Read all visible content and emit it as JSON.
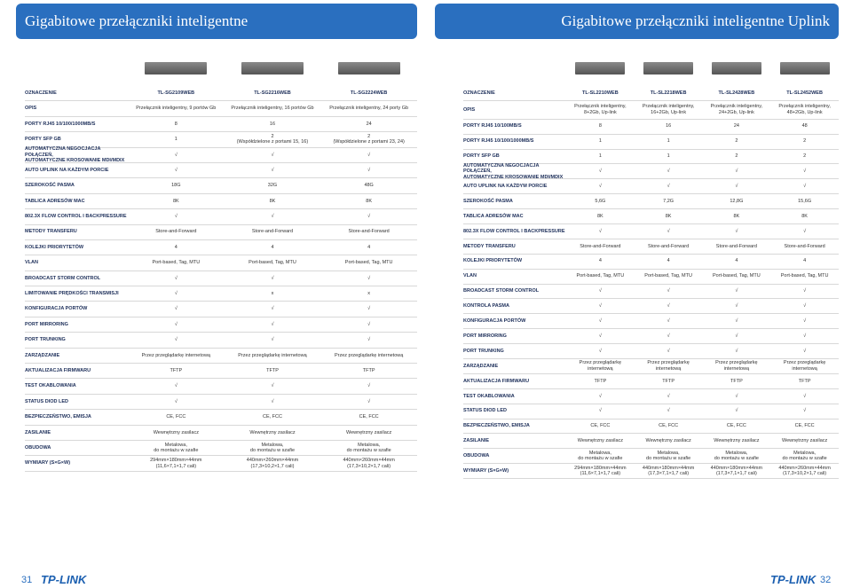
{
  "left": {
    "title": "Gigabitowe przełączniki inteligentne",
    "table": {
      "rows": [
        [
          "OZNACZENIE",
          "TL-SG2109WEB",
          "TL-SG2216WEB",
          "TL-SG2224WEB"
        ],
        [
          "OPIS",
          "Przełącznik inteligentny, 9 portów Gb",
          "Przełącznik inteligentny, 16 portów Gb",
          "Przełącznik inteligentny, 24 porty Gb"
        ],
        [
          "PORTY RJ45 10/100/1000MB/S",
          "8",
          "16",
          "24"
        ],
        [
          "PORTY SFP GB",
          "1",
          "2\n(Współdzielone z portami 15, 16)",
          "2\n(Współdzielone z portami 23, 24)"
        ],
        [
          "AUTOMATYCZNA NEGOCJACJA POŁĄCZEŃ,\nAUTOMATYCZNE KROSOWANIE MDI/MDIX",
          "√",
          "√",
          "√"
        ],
        [
          "AUTO UPLINK NA KAŻDYM PORCIE",
          "√",
          "√",
          "√"
        ],
        [
          "SZEROKOŚĆ PASMA",
          "18G",
          "32G",
          "48G"
        ],
        [
          "TABLICA ADRESÓW MAC",
          "8K",
          "8K",
          "8K"
        ],
        [
          "802.3X FLOW CONTROL I BACKPRESSURE",
          "√",
          "√",
          "√"
        ],
        [
          "METODY TRANSFERU",
          "Store-and-Forward",
          "Store-and-Forward",
          "Store-and-Forward"
        ],
        [
          "KOLEJKI PRIORYTETÓW",
          "4",
          "4",
          "4"
        ],
        [
          "VLAN",
          "Port-based, Tag, MTU",
          "Port-based, Tag, MTU",
          "Port-based, Tag, MTU"
        ],
        [
          "BROADCAST STORM CONTROL",
          "√",
          "√",
          "√"
        ],
        [
          "LIMITOWANIE PRĘDKOŚCI TRANSMISJI",
          "√",
          "x",
          "x"
        ],
        [
          "KONFIGURACJA PORTÓW",
          "√",
          "√",
          "√"
        ],
        [
          "PORT MIRRORING",
          "√",
          "√",
          "√"
        ],
        [
          "PORT TRUNKING",
          "√",
          "√",
          "√"
        ],
        [
          "ZARZĄDZANIE",
          "Przez przeglądarkę internetową",
          "Przez przeglądarkę internetową",
          "Przez przeglądarkę internetową"
        ],
        [
          "AKTUALIZACJA FIRMWARU",
          "TFTP",
          "TFTP",
          "TFTP"
        ],
        [
          "TEST OKABLOWANIA",
          "√",
          "√",
          "√"
        ],
        [
          "STATUS DIOD LED",
          "√",
          "√",
          "√"
        ],
        [
          "BEZPIECZEŃSTWO, EMISJA",
          "CE, FCC",
          "CE, FCC",
          "CE, FCC"
        ],
        [
          "ZASILANIE",
          "Wewnętrzny zasilacz",
          "Wewnętrzny zasilacz",
          "Wewnętrzny zasilacz"
        ],
        [
          "OBUDOWA",
          "Metalowa,\ndo montażu w szafie",
          "Metalowa,\ndo montażu w szafie",
          "Metalowa,\ndo montażu w szafie"
        ],
        [
          "WYMIARY (S×G×W)",
          "294mm×180mm×44mm\n(11,6×7,1×1,7 cali)",
          "440mm×260mm×44mm\n(17,3×10,2×1,7 cali)",
          "440mm×260mm×44mm\n(17,3×10,2×1,7 cali)"
        ]
      ]
    }
  },
  "right": {
    "title": "Gigabitowe przełączniki inteligentne Uplink",
    "table": {
      "rows": [
        [
          "OZNACZENIE",
          "TL-SL2210WEB",
          "TL-SL2218WEB",
          "TL-SL2428WEB",
          "TL-SL2452WEB"
        ],
        [
          "OPIS",
          "Przełącznik inteligentny,\n8+2Gb, Up-link",
          "Przełącznik inteligentny,\n16+2Gb, Up-link",
          "Przełącznik inteligentny,\n24+2Gb, Up-link",
          "Przełącznik inteligentny,\n48+2Gb, Up-link"
        ],
        [
          "PORTY RJ45 10/100MB/S",
          "8",
          "16",
          "24",
          "48"
        ],
        [
          "PORTY RJ45 10/100/1000MB/S",
          "1",
          "1",
          "2",
          "2"
        ],
        [
          "PORTY SFP GB",
          "1",
          "1",
          "2",
          "2"
        ],
        [
          "AUTOMATYCZNA NEGOCJACJA POŁĄCZEŃ,\nAUTOMATYCZNE KROSOWANIE MDI/MDIX",
          "√",
          "√",
          "√",
          "√"
        ],
        [
          "AUTO UPLINK NA KAŻDYM PORCIE",
          "√",
          "√",
          "√",
          "√"
        ],
        [
          "SZEROKOŚĆ PASMA",
          "5,6G",
          "7,2G",
          "12,8G",
          "15,6G"
        ],
        [
          "TABLICA ADRESÓW MAC",
          "8K",
          "8K",
          "8K",
          "8K"
        ],
        [
          "802.3X FLOW CONTROL I BACKPRESSURE",
          "√",
          "√",
          "√",
          "√"
        ],
        [
          "METODY TRANSFERU",
          "Store-and-Forward",
          "Store-and-Forward",
          "Store-and-Forward",
          "Store-and-Forward"
        ],
        [
          "KOLEJKI PRIORYTETÓW",
          "4",
          "4",
          "4",
          "4"
        ],
        [
          "VLAN",
          "Port-based, Tag, MTU",
          "Port-based, Tag, MTU",
          "Port-based, Tag, MTU",
          "Port-based, Tag, MTU"
        ],
        [
          "BROADCAST STORM CONTROL",
          "√",
          "√",
          "√",
          "√"
        ],
        [
          "KONTROLA PASMA",
          "√",
          "√",
          "√",
          "√"
        ],
        [
          "KONFIGURACJA PORTÓW",
          "√",
          "√",
          "√",
          "√"
        ],
        [
          "PORT MIRRORING",
          "√",
          "√",
          "√",
          "√"
        ],
        [
          "PORT TRUNKING",
          "√",
          "√",
          "√",
          "√"
        ],
        [
          "ZARZĄDZANIE",
          "Przez przeglądarkę internetową",
          "Przez przeglądarkę internetową",
          "Przez przeglądarkę internetową",
          "Przez przeglądarkę internetową"
        ],
        [
          "AKTUALIZACJA FIRMWARU",
          "TFTP",
          "TFTP",
          "TFTP",
          "TFTP"
        ],
        [
          "TEST OKABLOWANIA",
          "√",
          "√",
          "√",
          "√"
        ],
        [
          "STATUS DIOD LED",
          "√",
          "√",
          "√",
          "√"
        ],
        [
          "BEZPIECZEŃSTWO, EMISJA",
          "CE, FCC",
          "CE, FCC",
          "CE, FCC",
          "CE, FCC"
        ],
        [
          "ZASILANIE",
          "Wewnętrzny zasilacz",
          "Wewnętrzny zasilacz",
          "Wewnętrzny zasilacz",
          "Wewnętrzny zasilacz"
        ],
        [
          "OBUDOWA",
          "Metalowa,\ndo montażu w szafie",
          "Metalowa,\ndo montażu w szafie",
          "Metalowa,\ndo montażu w szafie",
          "Metalowa,\ndo montażu w szafie"
        ],
        [
          "WYMIARY (S×G×W)",
          "294mm×180mm×44mm\n(11,6×7,1×1,7 cali)",
          "440mm×180mm×44mm\n(17,3×7,1×1,7 cali)",
          "440mm×180mm×44mm\n(17,3×7,1×1,7 cali)",
          "440mm×260mm×44mm\n(17,3×10,2×1,7 cali)"
        ]
      ]
    }
  },
  "footer": {
    "left_page": "31",
    "right_page": "32",
    "logo": "TP-LINK"
  }
}
